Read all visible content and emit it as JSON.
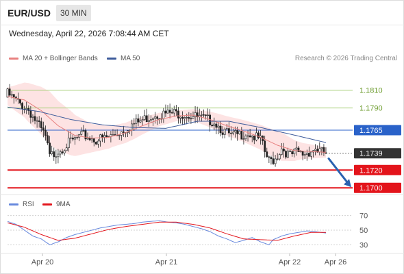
{
  "header": {
    "symbol": "EUR/USD",
    "timeframe": "30 MIN",
    "datetime": "Wednesday, April 22, 2026 7:08:44 AM CET"
  },
  "legend": {
    "ma20_bb": "MA 20 + Bollinger Bands",
    "ma50": "MA 50",
    "credit": "Research © 2026 Trading Central",
    "rsi": "RSI",
    "ma9": "9MA"
  },
  "colors": {
    "ma20": "#e8807f",
    "band_fill": "#fde3e3",
    "ma50": "#3c5a9a",
    "resistance": "#a8cf7a",
    "pivot": "#2a62c9",
    "support": "#e3141b",
    "current": "#333333",
    "rsi": "#6688dd",
    "rsi_ma": "#e3141b",
    "candle": "#222222"
  },
  "chart_data": [
    {
      "type": "candlestick",
      "instrument": "EUR/USD",
      "ylim": [
        1.1694,
        1.1836
      ],
      "x_ticks": [
        "Apr 20",
        "Apr 21",
        "Apr 22",
        "Apr 26"
      ],
      "levels": [
        {
          "id": "r2",
          "label": "1.1810",
          "value": 1.181,
          "kind": "resistance"
        },
        {
          "id": "r1",
          "label": "1.1790",
          "value": 1.179,
          "kind": "resistance"
        },
        {
          "id": "pivot",
          "label": "1.1765",
          "value": 1.1765,
          "kind": "pivot"
        },
        {
          "id": "last",
          "label": "1.1739",
          "value": 1.1739,
          "kind": "current"
        },
        {
          "id": "s1",
          "label": "1.1720",
          "value": 1.172,
          "kind": "support"
        },
        {
          "id": "s2",
          "label": "1.1700",
          "value": 1.17,
          "kind": "support"
        }
      ],
      "close_path": [
        [
          0,
          1.1806
        ],
        [
          5,
          1.1796
        ],
        [
          10,
          1.1788
        ],
        [
          14,
          1.1773
        ],
        [
          18,
          1.1757
        ],
        [
          20,
          1.1735
        ],
        [
          24,
          1.1742
        ],
        [
          30,
          1.1752
        ],
        [
          36,
          1.1759
        ],
        [
          42,
          1.1754
        ],
        [
          48,
          1.1757
        ],
        [
          54,
          1.1764
        ],
        [
          58,
          1.177
        ],
        [
          62,
          1.1774
        ],
        [
          66,
          1.1779
        ],
        [
          70,
          1.1783
        ],
        [
          74,
          1.1783
        ],
        [
          78,
          1.1784
        ],
        [
          82,
          1.1784
        ],
        [
          86,
          1.1782
        ],
        [
          90,
          1.1779
        ],
        [
          94,
          1.1777
        ],
        [
          98,
          1.1775
        ],
        [
          102,
          1.1765
        ],
        [
          106,
          1.1758
        ],
        [
          110,
          1.176
        ],
        [
          114,
          1.1762
        ],
        [
          118,
          1.1756
        ],
        [
          120,
          1.1754
        ],
        [
          122,
          1.174
        ],
        [
          124,
          1.173
        ],
        [
          127,
          1.1733
        ],
        [
          130,
          1.1745
        ],
        [
          134,
          1.1736
        ],
        [
          137,
          1.174
        ],
        [
          140,
          1.1738
        ],
        [
          143,
          1.1741
        ],
        [
          146,
          1.1744
        ],
        [
          149,
          1.174
        ],
        [
          151,
          1.1739
        ]
      ],
      "ma20_path": [
        [
          0,
          1.1803
        ],
        [
          8,
          1.1799
        ],
        [
          16,
          1.1787
        ],
        [
          24,
          1.177
        ],
        [
          32,
          1.1759
        ],
        [
          40,
          1.1756
        ],
        [
          48,
          1.1757
        ],
        [
          56,
          1.1762
        ],
        [
          64,
          1.177
        ],
        [
          72,
          1.1777
        ],
        [
          80,
          1.1781
        ],
        [
          88,
          1.1782
        ],
        [
          96,
          1.1777
        ],
        [
          104,
          1.177
        ],
        [
          112,
          1.1764
        ],
        [
          120,
          1.1757
        ],
        [
          128,
          1.1748
        ],
        [
          136,
          1.1742
        ],
        [
          144,
          1.1741
        ],
        [
          151,
          1.174
        ]
      ],
      "band_width_path": [
        [
          0,
          0.001
        ],
        [
          10,
          0.0022
        ],
        [
          20,
          0.003
        ],
        [
          30,
          0.0025
        ],
        [
          40,
          0.0016
        ],
        [
          50,
          0.0012
        ],
        [
          60,
          0.0011
        ],
        [
          70,
          0.0008
        ],
        [
          80,
          0.0006
        ],
        [
          90,
          0.0007
        ],
        [
          100,
          0.001
        ],
        [
          110,
          0.0012
        ],
        [
          120,
          0.0014
        ],
        [
          130,
          0.0016
        ],
        [
          140,
          0.0009
        ],
        [
          151,
          0.0006
        ]
      ],
      "ma50_path": [
        [
          0,
          1.1791
        ],
        [
          15,
          1.1786
        ],
        [
          30,
          1.1777
        ],
        [
          45,
          1.1771
        ],
        [
          60,
          1.1768
        ],
        [
          75,
          1.1767
        ],
        [
          90,
          1.1775
        ],
        [
          105,
          1.1775
        ],
        [
          120,
          1.1768
        ],
        [
          135,
          1.176
        ],
        [
          151,
          1.1751
        ]
      ],
      "forecast_arrow": {
        "from": 1.1733,
        "to": 1.17,
        "direction": "down"
      }
    },
    {
      "type": "line",
      "name": "RSI",
      "ylim": [
        20,
        80
      ],
      "y_ticks": [
        70,
        50,
        30
      ],
      "series": [
        {
          "name": "RSI",
          "path": [
            [
              0,
              62
            ],
            [
              4,
              58
            ],
            [
              8,
              50
            ],
            [
              12,
              42
            ],
            [
              16,
              38
            ],
            [
              20,
              30
            ],
            [
              24,
              34
            ],
            [
              28,
              40
            ],
            [
              32,
              44
            ],
            [
              36,
              47
            ],
            [
              40,
              50
            ],
            [
              44,
              53
            ],
            [
              48,
              55
            ],
            [
              52,
              57
            ],
            [
              56,
              58
            ],
            [
              60,
              59
            ],
            [
              64,
              61
            ],
            [
              68,
              62
            ],
            [
              72,
              63
            ],
            [
              76,
              61
            ],
            [
              80,
              60
            ],
            [
              84,
              58
            ],
            [
              88,
              55
            ],
            [
              92,
              52
            ],
            [
              96,
              48
            ],
            [
              100,
              42
            ],
            [
              104,
              38
            ],
            [
              108,
              33
            ],
            [
              112,
              36
            ],
            [
              116,
              40
            ],
            [
              120,
              34
            ],
            [
              124,
              30
            ],
            [
              126,
              37
            ],
            [
              130,
              42
            ],
            [
              134,
              45
            ],
            [
              138,
              47
            ],
            [
              142,
              49
            ],
            [
              146,
              48
            ],
            [
              151,
              46
            ]
          ]
        },
        {
          "name": "9MA",
          "path": [
            [
              0,
              60
            ],
            [
              8,
              54
            ],
            [
              16,
              44
            ],
            [
              24,
              36
            ],
            [
              32,
              39
            ],
            [
              40,
              45
            ],
            [
              48,
              51
            ],
            [
              56,
              55
            ],
            [
              64,
              58
            ],
            [
              72,
              61
            ],
            [
              80,
              61
            ],
            [
              88,
              58
            ],
            [
              96,
              53
            ],
            [
              104,
              45
            ],
            [
              112,
              38
            ],
            [
              120,
              37
            ],
            [
              128,
              36
            ],
            [
              136,
              42
            ],
            [
              144,
              47
            ],
            [
              151,
              47
            ]
          ]
        }
      ]
    }
  ]
}
